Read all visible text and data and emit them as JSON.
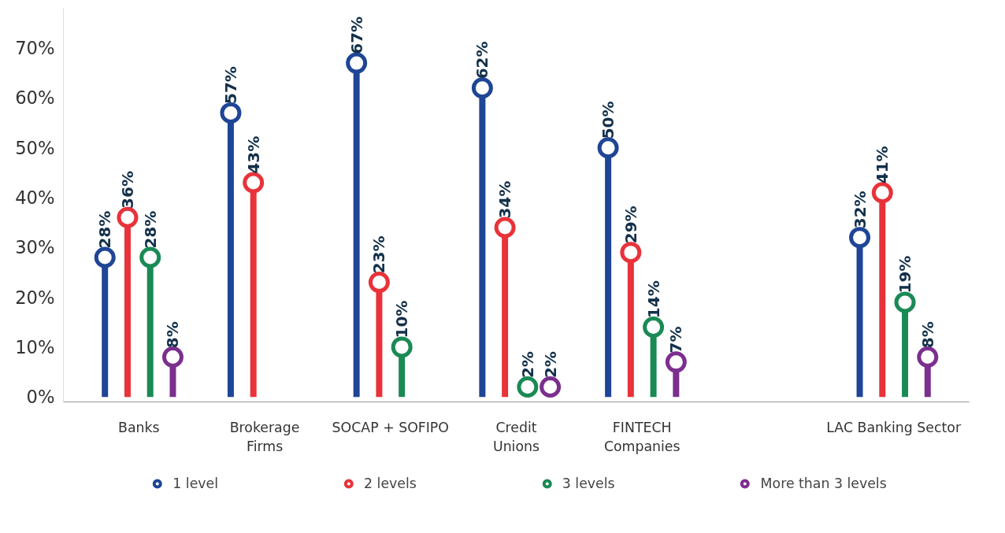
{
  "chart_data": {
    "type": "lollipop",
    "categories": [
      "Banks",
      "Brokerage\nFirms",
      "SOCAP + SOFIPO",
      "Credit\nUnions",
      "FINTECH\nCompanies",
      null,
      "LAC Banking Sector"
    ],
    "series": [
      {
        "name": "1 level",
        "color": "#1f4596",
        "values": [
          28,
          57,
          67,
          62,
          50,
          null,
          32
        ],
        "value_labels": [
          "28%",
          "57%",
          "67%",
          "62%",
          "50%",
          null,
          "32%"
        ]
      },
      {
        "name": "2 levels",
        "color": "#e8333a",
        "values": [
          36,
          43,
          23,
          34,
          29,
          null,
          41
        ],
        "value_labels": [
          "36%",
          "43%",
          "23%",
          "34%",
          "29%",
          null,
          "41%"
        ]
      },
      {
        "name": "3 levels",
        "color": "#1a8a55",
        "values": [
          28,
          null,
          10,
          2,
          14,
          null,
          19
        ],
        "value_labels": [
          "28%",
          null,
          "10%",
          "2%",
          "14%",
          null,
          "19%"
        ]
      },
      {
        "name": "More than 3 levels",
        "color": "#7b2f8e",
        "values": [
          8,
          null,
          null,
          2,
          7,
          null,
          8
        ],
        "value_labels": [
          "8%",
          null,
          null,
          "2%",
          "7%",
          null,
          "8%"
        ]
      }
    ],
    "ylim": [
      -1,
      78
    ],
    "yticks": [
      {
        "value": 0,
        "label": "0%"
      },
      {
        "value": 10,
        "label": "10%"
      },
      {
        "value": 20,
        "label": "20%"
      },
      {
        "value": 30,
        "label": "30%"
      },
      {
        "value": 40,
        "label": "40%"
      },
      {
        "value": 50,
        "label": "50%"
      },
      {
        "value": 60,
        "label": "60%"
      },
      {
        "value": 70,
        "label": "70%"
      }
    ],
    "marker": "circle",
    "legend": "bottom",
    "grid": false
  }
}
